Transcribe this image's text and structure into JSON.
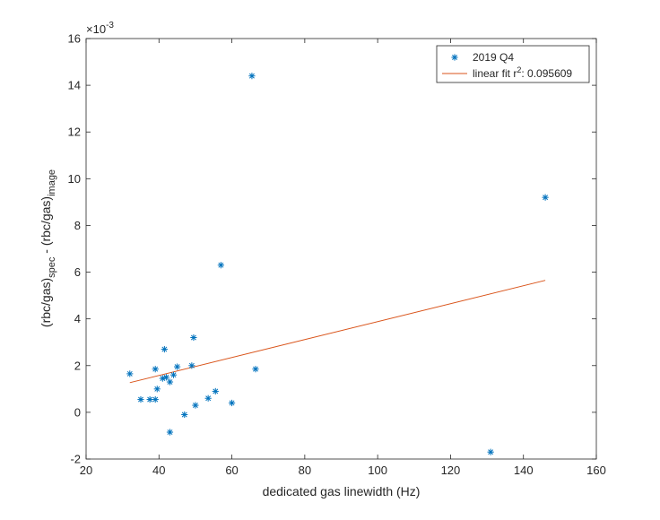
{
  "chart_data": {
    "type": "scatter",
    "xlabel": "dedicated gas linewidth (Hz)",
    "ylabel": {
      "p1": "(rbc/gas)",
      "s1": "spec",
      "p2": " - (rbc/gas)",
      "s2": "image"
    },
    "exponent": {
      "base": "×10",
      "power": "-3"
    },
    "xlim": [
      20,
      160
    ],
    "ylim": [
      -2,
      16
    ],
    "xticks": [
      "20",
      "40",
      "60",
      "80",
      "100",
      "120",
      "140",
      "160"
    ],
    "yticks": [
      "-2",
      "0",
      "2",
      "4",
      "6",
      "8",
      "10",
      "12",
      "14",
      "16"
    ],
    "grid": false,
    "legend_position": "top-right",
    "legend": {
      "series_label": "2019 Q4",
      "fit_prefix": "linear fit r",
      "fit_sup": "2",
      "fit_suffix": ": 0.095609"
    },
    "series": [
      {
        "name": "2019 Q4",
        "marker": "asterisk",
        "color": "#0072BD",
        "points": [
          [
            32,
            1.65
          ],
          [
            35,
            0.55
          ],
          [
            37.5,
            0.55
          ],
          [
            39,
            1.85
          ],
          [
            39,
            0.55
          ],
          [
            39.5,
            1.0
          ],
          [
            41,
            1.45
          ],
          [
            41.5,
            2.7
          ],
          [
            42,
            1.5
          ],
          [
            43,
            1.3
          ],
          [
            43,
            -0.85
          ],
          [
            44,
            1.6
          ],
          [
            45,
            1.95
          ],
          [
            47,
            -0.1
          ],
          [
            49,
            2.0
          ],
          [
            49.5,
            3.2
          ],
          [
            50,
            0.3
          ],
          [
            53.5,
            0.6
          ],
          [
            55.5,
            0.9
          ],
          [
            57,
            6.3
          ],
          [
            60,
            0.4
          ],
          [
            65.5,
            14.4
          ],
          [
            66.5,
            1.85
          ],
          [
            131,
            -1.7
          ],
          [
            146,
            9.2
          ]
        ]
      }
    ],
    "fit_line": {
      "color": "#D95319",
      "points": [
        [
          32,
          1.27
        ],
        [
          146,
          5.65
        ]
      ]
    }
  }
}
